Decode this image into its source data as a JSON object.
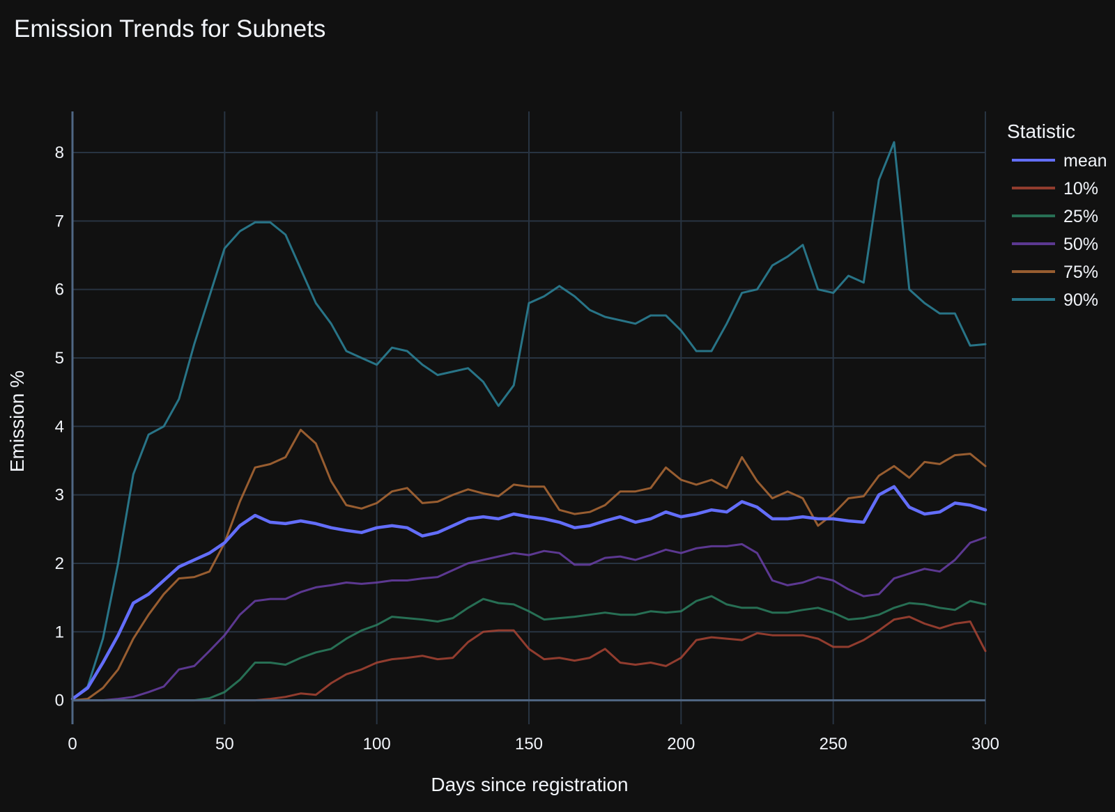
{
  "chart_data": {
    "type": "line",
    "title": "Emission Trends for Subnets",
    "xlabel": "Days since registration",
    "ylabel": "Emission %",
    "xlim": [
      0,
      300
    ],
    "ylim": [
      -0.35,
      8.6
    ],
    "xticks": [
      0,
      50,
      100,
      150,
      200,
      250,
      300
    ],
    "yticks": [
      0,
      1,
      2,
      3,
      4,
      5,
      6,
      7,
      8
    ],
    "grid": true,
    "legend": {
      "title": "Statistic",
      "placement": "right"
    },
    "series": [
      {
        "name": "mean",
        "color": "#636efa",
        "width": 4.5,
        "opacity": 1,
        "x": [
          0,
          5,
          10,
          15,
          20,
          25,
          30,
          35,
          40,
          45,
          50,
          55,
          60,
          65,
          70,
          75,
          80,
          85,
          90,
          95,
          100,
          105,
          110,
          115,
          120,
          125,
          130,
          135,
          140,
          145,
          150,
          155,
          160,
          165,
          170,
          175,
          180,
          185,
          190,
          195,
          200,
          205,
          210,
          215,
          220,
          225,
          230,
          235,
          240,
          245,
          250,
          255,
          260,
          265,
          270,
          275,
          280,
          285,
          290,
          295,
          300
        ],
        "y": [
          0.02,
          0.18,
          0.55,
          0.95,
          1.42,
          1.55,
          1.75,
          1.95,
          2.05,
          2.15,
          2.3,
          2.55,
          2.7,
          2.6,
          2.58,
          2.62,
          2.58,
          2.52,
          2.48,
          2.45,
          2.52,
          2.55,
          2.52,
          2.4,
          2.45,
          2.55,
          2.65,
          2.68,
          2.65,
          2.72,
          2.68,
          2.65,
          2.6,
          2.52,
          2.55,
          2.62,
          2.68,
          2.6,
          2.65,
          2.75,
          2.68,
          2.72,
          2.78,
          2.75,
          2.9,
          2.82,
          2.65,
          2.65,
          2.68,
          2.65,
          2.65,
          2.62,
          2.6,
          3.0,
          3.12,
          2.82,
          2.72,
          2.75,
          2.88,
          2.85,
          2.78
        ]
      },
      {
        "name": "10%",
        "color": "#a84434",
        "width": 3,
        "opacity": 0.85,
        "x": [
          0,
          5,
          10,
          15,
          20,
          25,
          30,
          35,
          40,
          45,
          50,
          55,
          60,
          65,
          70,
          75,
          80,
          85,
          90,
          95,
          100,
          105,
          110,
          115,
          120,
          125,
          130,
          135,
          140,
          145,
          150,
          155,
          160,
          165,
          170,
          175,
          180,
          185,
          190,
          195,
          200,
          205,
          210,
          215,
          220,
          225,
          230,
          235,
          240,
          245,
          250,
          255,
          260,
          265,
          270,
          275,
          280,
          285,
          290,
          295,
          300
        ],
        "y": [
          0,
          0,
          0,
          0,
          0,
          0,
          0,
          0,
          0,
          0,
          0,
          0,
          0,
          0.02,
          0.05,
          0.1,
          0.08,
          0.25,
          0.38,
          0.45,
          0.55,
          0.6,
          0.62,
          0.65,
          0.6,
          0.62,
          0.85,
          1.0,
          1.02,
          1.02,
          0.75,
          0.6,
          0.62,
          0.58,
          0.62,
          0.75,
          0.55,
          0.52,
          0.55,
          0.5,
          0.62,
          0.88,
          0.92,
          0.9,
          0.88,
          0.98,
          0.95,
          0.95,
          0.95,
          0.9,
          0.78,
          0.78,
          0.88,
          1.02,
          1.18,
          1.22,
          1.12,
          1.05,
          1.12,
          1.15,
          0.72
        ]
      },
      {
        "name": "25%",
        "color": "#2b8060",
        "width": 3,
        "opacity": 0.85,
        "x": [
          0,
          5,
          10,
          15,
          20,
          25,
          30,
          35,
          40,
          45,
          50,
          55,
          60,
          65,
          70,
          75,
          80,
          85,
          90,
          95,
          100,
          105,
          110,
          115,
          120,
          125,
          130,
          135,
          140,
          145,
          150,
          155,
          160,
          165,
          170,
          175,
          180,
          185,
          190,
          195,
          200,
          205,
          210,
          215,
          220,
          225,
          230,
          235,
          240,
          245,
          250,
          255,
          260,
          265,
          270,
          275,
          280,
          285,
          290,
          295,
          300
        ],
        "y": [
          0,
          0,
          0,
          0,
          0,
          0,
          0,
          0,
          0,
          0.03,
          0.12,
          0.3,
          0.55,
          0.55,
          0.52,
          0.62,
          0.7,
          0.75,
          0.9,
          1.02,
          1.1,
          1.22,
          1.2,
          1.18,
          1.15,
          1.2,
          1.35,
          1.48,
          1.42,
          1.4,
          1.3,
          1.18,
          1.2,
          1.22,
          1.25,
          1.28,
          1.25,
          1.25,
          1.3,
          1.28,
          1.3,
          1.45,
          1.52,
          1.4,
          1.35,
          1.35,
          1.28,
          1.28,
          1.32,
          1.35,
          1.28,
          1.18,
          1.2,
          1.25,
          1.35,
          1.42,
          1.4,
          1.35,
          1.32,
          1.45,
          1.4
        ]
      },
      {
        "name": "50%",
        "color": "#6a3fa8",
        "width": 3,
        "opacity": 0.85,
        "x": [
          0,
          5,
          10,
          15,
          20,
          25,
          30,
          35,
          40,
          45,
          50,
          55,
          60,
          65,
          70,
          75,
          80,
          85,
          90,
          95,
          100,
          105,
          110,
          115,
          120,
          125,
          130,
          135,
          140,
          145,
          150,
          155,
          160,
          165,
          170,
          175,
          180,
          185,
          190,
          195,
          200,
          205,
          210,
          215,
          220,
          225,
          230,
          235,
          240,
          245,
          250,
          255,
          260,
          265,
          270,
          275,
          280,
          285,
          290,
          295,
          300
        ],
        "y": [
          0,
          0,
          0,
          0.02,
          0.05,
          0.12,
          0.2,
          0.45,
          0.5,
          0.72,
          0.95,
          1.25,
          1.45,
          1.48,
          1.48,
          1.58,
          1.65,
          1.68,
          1.72,
          1.7,
          1.72,
          1.75,
          1.75,
          1.78,
          1.8,
          1.9,
          2.0,
          2.05,
          2.1,
          2.15,
          2.12,
          2.18,
          2.15,
          1.98,
          1.98,
          2.08,
          2.1,
          2.05,
          2.12,
          2.2,
          2.15,
          2.22,
          2.25,
          2.25,
          2.28,
          2.15,
          1.75,
          1.68,
          1.72,
          1.8,
          1.75,
          1.62,
          1.52,
          1.55,
          1.78,
          1.85,
          1.92,
          1.88,
          2.05,
          2.3,
          2.38
        ]
      },
      {
        "name": "75%",
        "color": "#b06b36",
        "width": 3,
        "opacity": 0.85,
        "x": [
          0,
          5,
          10,
          15,
          20,
          25,
          30,
          35,
          40,
          45,
          50,
          55,
          60,
          65,
          70,
          75,
          80,
          85,
          90,
          95,
          100,
          105,
          110,
          115,
          120,
          125,
          130,
          135,
          140,
          145,
          150,
          155,
          160,
          165,
          170,
          175,
          180,
          185,
          190,
          195,
          200,
          205,
          210,
          215,
          220,
          225,
          230,
          235,
          240,
          245,
          250,
          255,
          260,
          265,
          270,
          275,
          280,
          285,
          290,
          295,
          300
        ],
        "y": [
          0,
          0.02,
          0.18,
          0.45,
          0.9,
          1.25,
          1.55,
          1.78,
          1.8,
          1.88,
          2.3,
          2.9,
          3.4,
          3.45,
          3.55,
          3.95,
          3.75,
          3.2,
          2.85,
          2.8,
          2.88,
          3.05,
          3.1,
          2.88,
          2.9,
          3.0,
          3.08,
          3.02,
          2.98,
          3.15,
          3.12,
          3.12,
          2.78,
          2.72,
          2.75,
          2.85,
          3.05,
          3.05,
          3.1,
          3.4,
          3.22,
          3.15,
          3.22,
          3.1,
          3.55,
          3.2,
          2.95,
          3.05,
          2.95,
          2.55,
          2.72,
          2.95,
          2.98,
          3.28,
          3.42,
          3.25,
          3.48,
          3.45,
          3.58,
          3.6,
          3.42
        ]
      },
      {
        "name": "90%",
        "color": "#2a7a8e",
        "width": 3,
        "opacity": 0.95,
        "x": [
          0,
          5,
          10,
          15,
          20,
          25,
          30,
          35,
          40,
          45,
          50,
          55,
          60,
          65,
          70,
          75,
          80,
          85,
          90,
          95,
          100,
          105,
          110,
          115,
          120,
          125,
          130,
          135,
          140,
          145,
          150,
          155,
          160,
          165,
          170,
          175,
          180,
          185,
          190,
          195,
          200,
          205,
          210,
          215,
          220,
          225,
          230,
          235,
          240,
          245,
          250,
          255,
          260,
          265,
          270,
          275,
          280,
          285,
          290,
          295,
          300
        ],
        "y": [
          0.02,
          0.2,
          0.9,
          2.0,
          3.3,
          3.88,
          4.0,
          4.4,
          5.2,
          5.9,
          6.6,
          6.85,
          6.98,
          6.98,
          6.8,
          6.3,
          5.8,
          5.5,
          5.1,
          5.0,
          4.9,
          5.15,
          5.1,
          4.9,
          4.75,
          4.8,
          4.85,
          4.65,
          4.3,
          4.6,
          5.8,
          5.9,
          6.05,
          5.9,
          5.7,
          5.6,
          5.55,
          5.5,
          5.62,
          5.62,
          5.4,
          5.1,
          5.1,
          5.5,
          5.95,
          6.0,
          6.35,
          6.48,
          6.65,
          6.0,
          5.95,
          6.2,
          6.1,
          7.6,
          8.15,
          6.0,
          5.8,
          5.65,
          5.65,
          5.18,
          5.2
        ]
      }
    ]
  }
}
